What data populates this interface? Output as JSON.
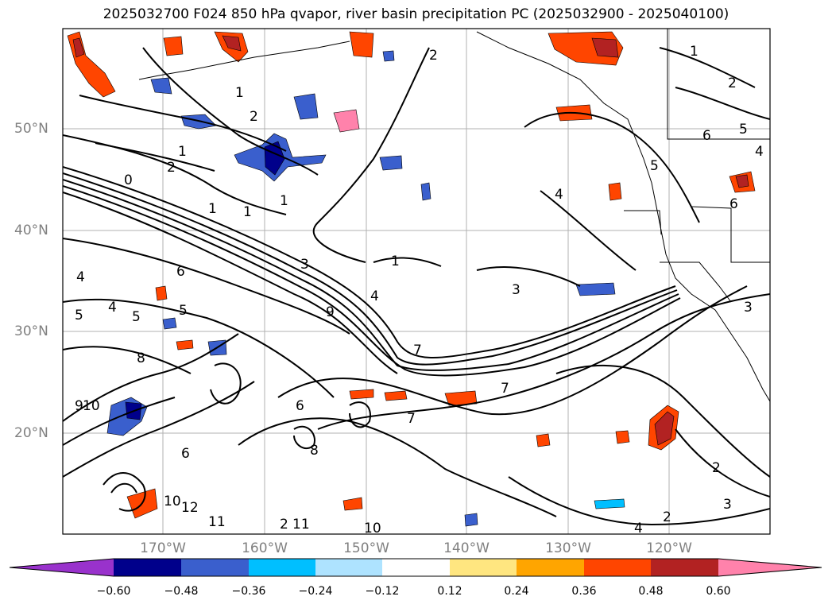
{
  "title": "2025032700 F024 850 hPa qvapor, river basin precipitation PC (2025032900 - 2025040100)",
  "map": {
    "lat_labels": [
      "50°N",
      "40°N",
      "30°N",
      "20°N"
    ],
    "lon_labels": [
      "170°W",
      "160°W",
      "150°W",
      "140°W",
      "130°W",
      "120°W"
    ],
    "contour_variable": "850 hPa qvapor",
    "contour_color": "#000000",
    "contour_labels": [
      "2",
      "1",
      "2",
      "1",
      "2",
      "0",
      "1",
      "1",
      "1",
      "3",
      "1",
      "4",
      "5",
      "6",
      "5",
      "4",
      "5",
      "4",
      "3",
      "9",
      "8",
      "7",
      "10",
      "9",
      "6",
      "7",
      "8",
      "2",
      "3",
      "2",
      "2",
      "3",
      "4",
      "5",
      "11",
      "12",
      "10",
      "11",
      "10",
      "4",
      "2",
      "6",
      "5",
      "4",
      "1",
      "2",
      "7",
      "6",
      "6"
    ],
    "gridline_color": "#b0b0b0",
    "grid": true
  },
  "colorbar": {
    "variable": "river basin precipitation PC",
    "tick_labels": [
      "−0.60",
      "−0.48",
      "−0.36",
      "−0.24",
      "−0.12",
      "0.12",
      "0.24",
      "0.36",
      "0.48",
      "0.60"
    ],
    "colors": [
      "#9932cc",
      "#00008b",
      "#3a5fcd",
      "#00bfff",
      "#aee3ff",
      "#ffffff",
      "#ffe680",
      "#ffa500",
      "#ff4500",
      "#b22222",
      "#ff82ab"
    ],
    "extend": "both"
  }
}
